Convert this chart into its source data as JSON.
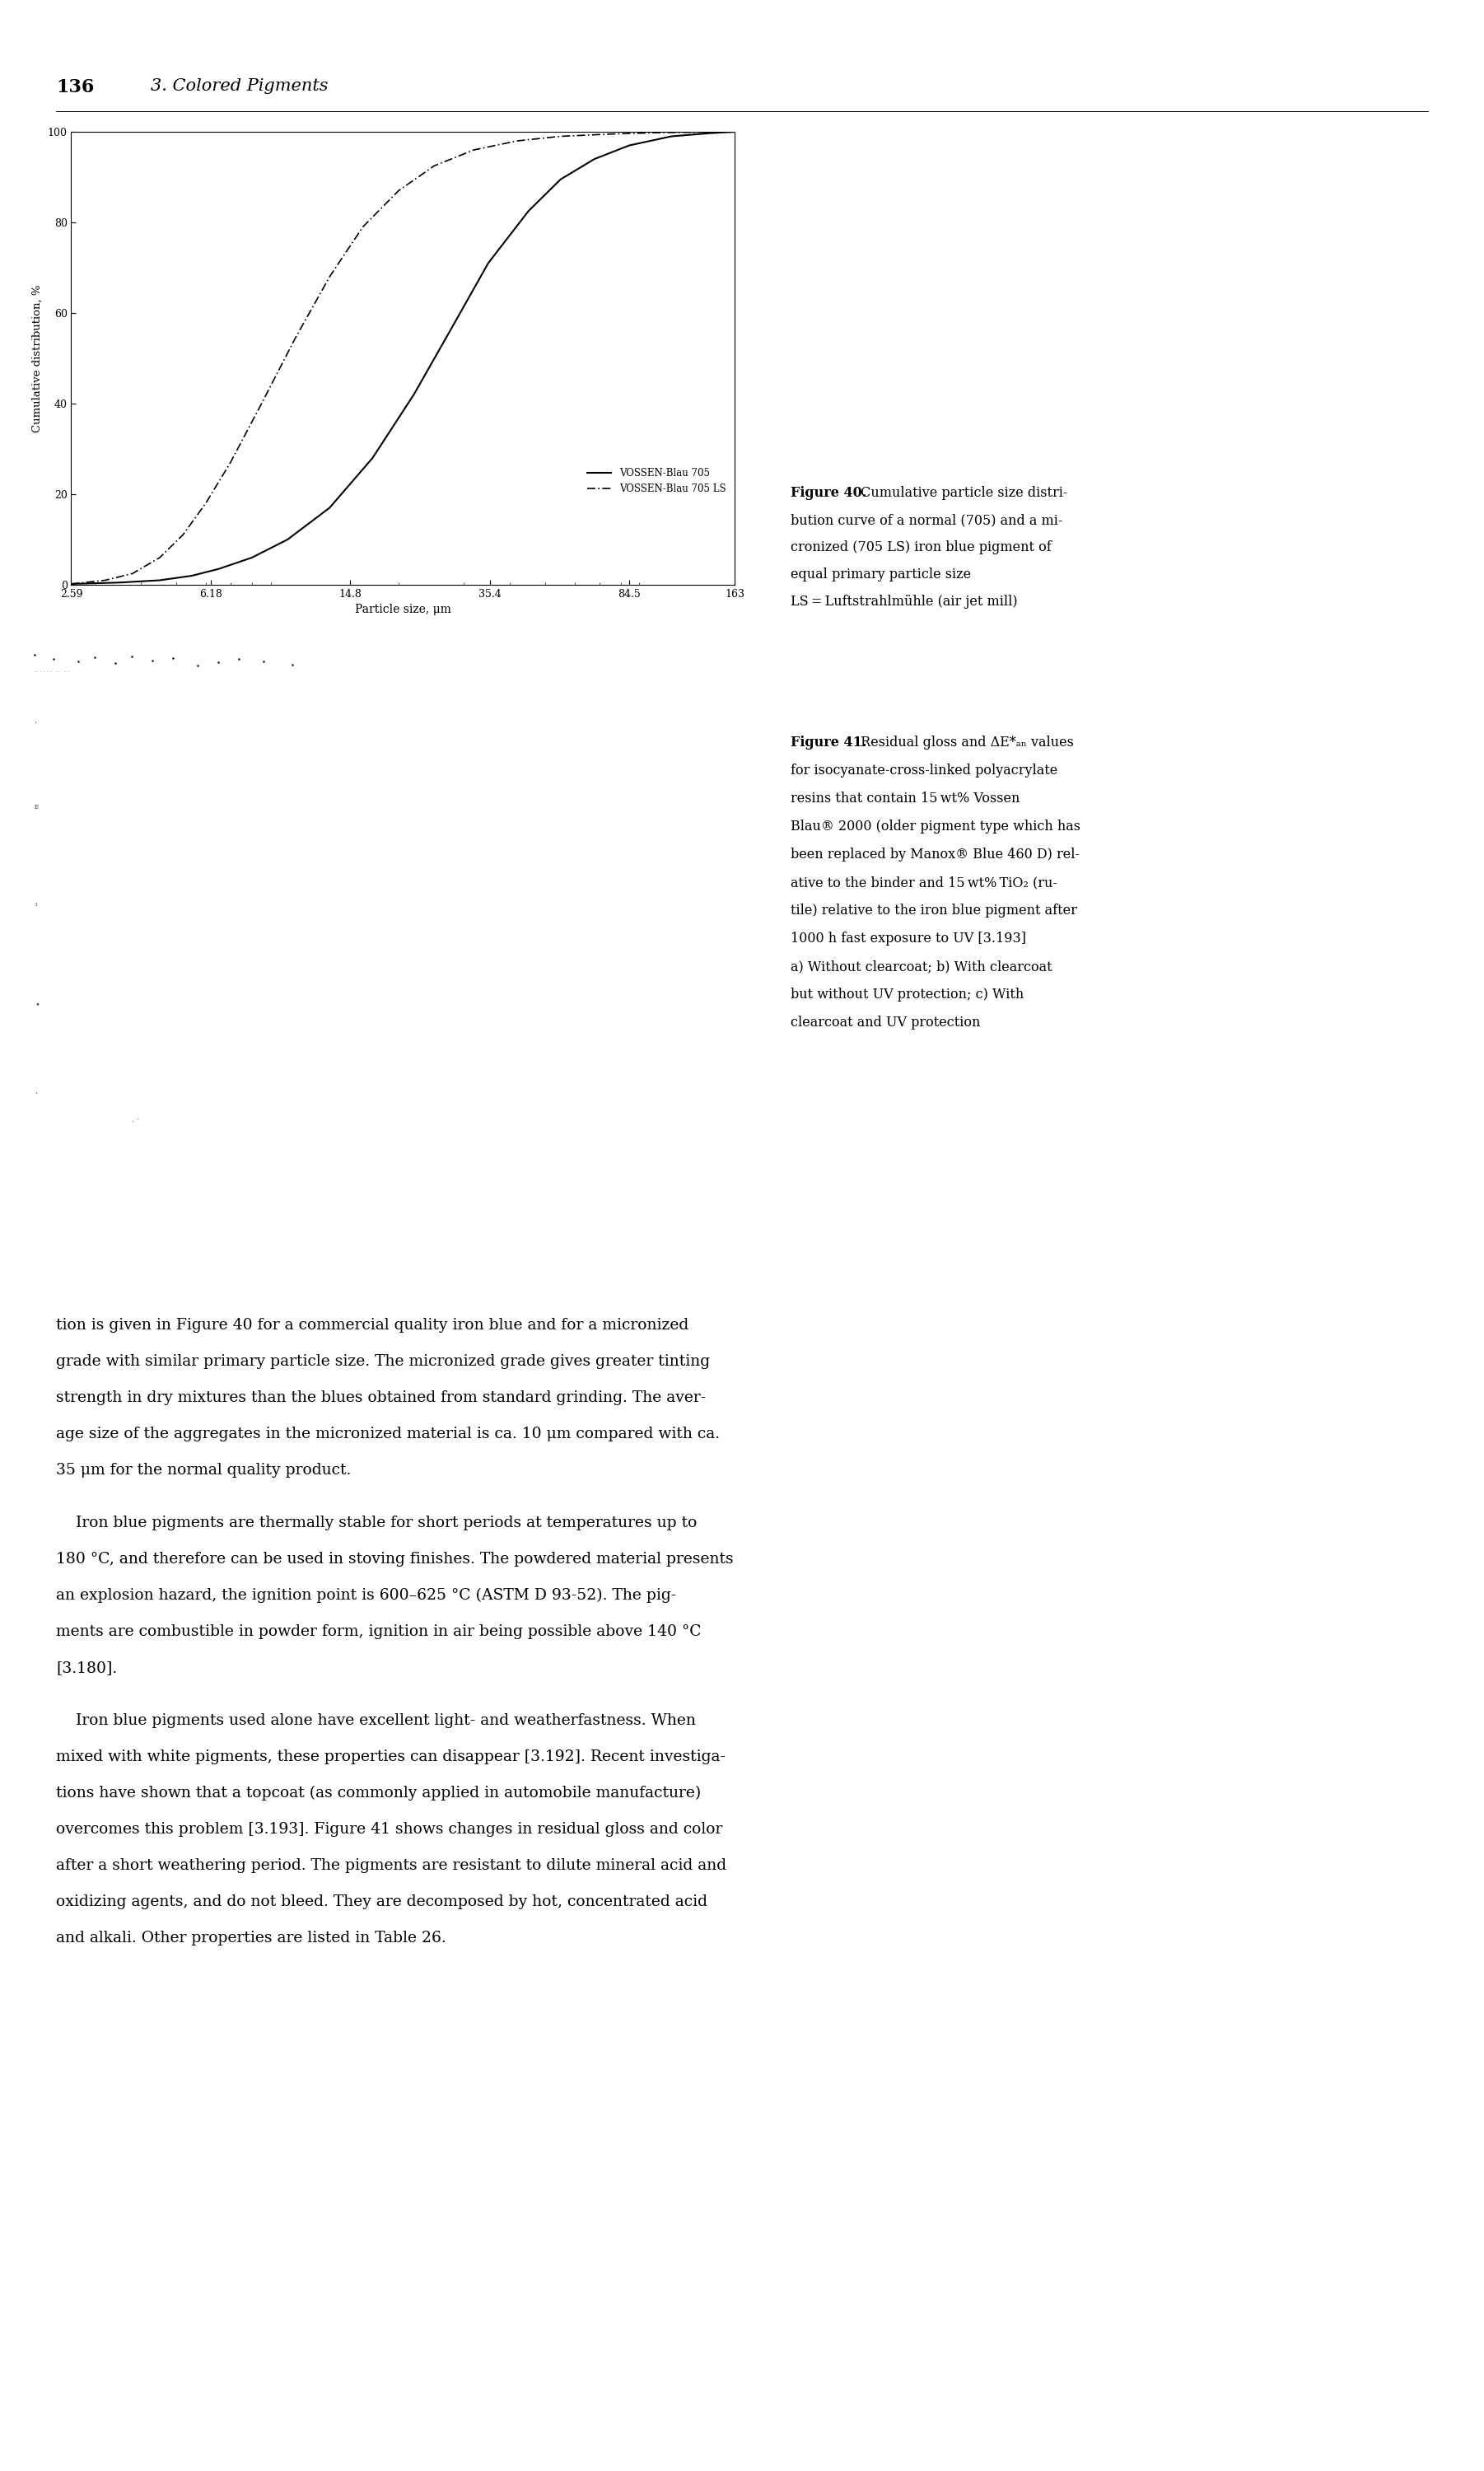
{
  "page_header_number": "136",
  "page_header_title": "3. Colored Pigments",
  "fig40_ylabel": "Cumulative distribution, %",
  "fig40_xlabel": "Particle size, μm",
  "fig40_xticks": [
    "2.59",
    "6.18",
    "14.8",
    "35.4",
    "84.5",
    "163"
  ],
  "fig40_xtick_vals": [
    2.59,
    6.18,
    14.8,
    35.4,
    84.5,
    163
  ],
  "fig40_legend1": "VOSSEN-Blau 705",
  "fig40_legend2": "VOSSEN-Blau 705 LS",
  "fig40_caption_bold": "Figure 40.",
  "fig40_caption_rest": " Cumulative particle size distri-\nbution curve of a normal (705) and a mi-\ncronized (705 LS) iron blue pigment of\nequal primary particle size\nLS = Luftstrahlmühle (air jet mill)",
  "fig41_caption_bold": "Figure 41.",
  "fig41_caption_rest": " Residual gloss and ΔE*ₐₙ values\nfor isocyanate-cross-linked polyacrylate\nresins that contain 15 wt% Vossen\nBlau® 2000 (older pigment type which has\nbeen replaced by Manox® Blue 460 D) rel-\native to the binder and 15 wt% TiO₂ (ru-\ntile) relative to the iron blue pigment after\n1000 h fast exposure to UV [3.193]\na) Without clearcoat; b) With clearcoat\nbut without UV protection; c) With\nclearcoat and UV protection",
  "body_para1": [
    "tion is given in Figure 40 for a commercial quality iron blue and for a micronized",
    "grade with similar primary particle size. The micronized grade gives greater tinting",
    "strength in dry mixtures than the blues obtained from standard grinding. The aver-",
    "age size of the aggregates in the micronized material is ca. 10 μm compared with ca.",
    "35 μm for the normal quality product."
  ],
  "body_para2": [
    "    Iron blue pigments are thermally stable for short periods at temperatures up to",
    "180 °C, and therefore can be used in stoving finishes. The powdered material presents",
    "an explosion hazard, the ignition point is 600–625 °C (ASTM D 93-52). The pig-",
    "ments are combustible in powder form, ignition in air being possible above 140 °C",
    "[3.180]."
  ],
  "body_para3": [
    "    Iron blue pigments used alone have excellent light- and weatherfastness. When",
    "mixed with white pigments, these properties can disappear [3.192]. Recent investiga-",
    "tions have shown that a topcoat (as commonly applied in automobile manufacture)",
    "overcomes this problem [3.193]. Figure 41 shows changes in residual gloss and color",
    "after a short weathering period. The pigments are resistant to dilute mineral acid and",
    "oxidizing agents, and do not bleed. They are decomposed by hot, concentrated acid",
    "and alkali. Other properties are listed in Table 26."
  ],
  "background_color": "#ffffff",
  "text_color": "#000000"
}
